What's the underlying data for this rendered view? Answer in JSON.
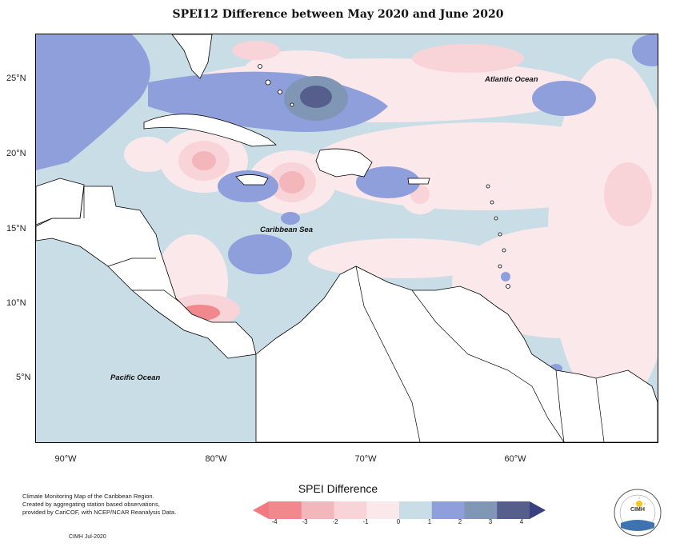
{
  "title": "SPEI12 Difference between May 2020 and June 2020",
  "map": {
    "latitude_labels": [
      "25°N",
      "20°N",
      "15°N",
      "10°N",
      "5°N"
    ],
    "longitude_labels": [
      "90°W",
      "80°W",
      "70°W",
      "60°W"
    ],
    "ocean_labels": {
      "atlantic": "Atlantic Ocean",
      "caribbean": "Caribbean Sea",
      "pacific": "Pacific Ocean"
    },
    "background_color": "#c9dde6",
    "land_color": "#ffffff",
    "coastline_color": "#000000"
  },
  "legend": {
    "title": "SPEI Difference",
    "ticks": [
      "-4",
      "-3",
      "-2",
      "-1",
      "0",
      "1",
      "2",
      "3",
      "4"
    ],
    "colors": [
      "#f0888e",
      "#f2b6bb",
      "#f8d3d7",
      "#fbe8ea",
      "#c9dde6",
      "#8e9fdc",
      "#7f96b4",
      "#565f8c"
    ],
    "low_arrow_color": "#f07a80",
    "high_arrow_color": "#3a3f7e"
  },
  "credits": {
    "lines": [
      "Climate Monitoring Map of the Caribbean Region.",
      "Created by aggregating station based observations,",
      "provided by CariCOF, with NCEP/NCAR Reanalysis Data."
    ],
    "date": "CIMH Jul-2020"
  },
  "logo": {
    "text": "CIMH",
    "icon": "cimh-sun-logo-icon"
  }
}
